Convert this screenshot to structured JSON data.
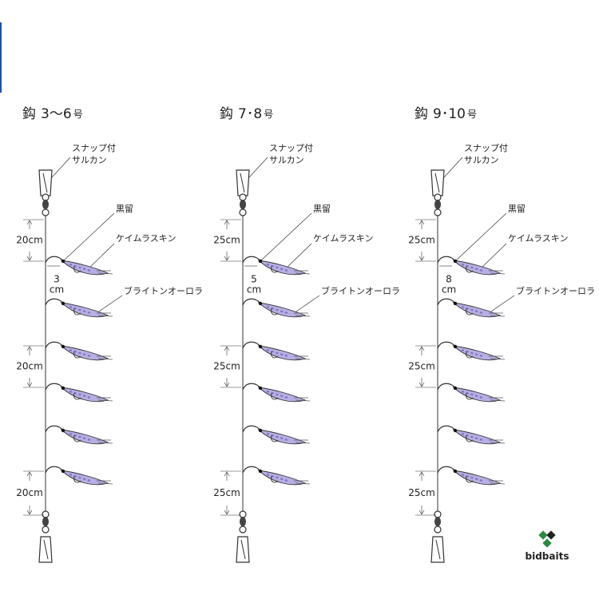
{
  "rigs": [
    {
      "title": {
        "hook": "鈎",
        "size": "3〜6",
        "unit": "号"
      },
      "snap": [
        "スナップ付",
        "サルカン"
      ],
      "knot": "黒留",
      "skin": "ケイムラスキン",
      "aurora": "ブライトンオーロラ",
      "branch": [
        "3",
        "cm"
      ],
      "spacings": [
        "20cm",
        "20cm",
        "20cm"
      ]
    },
    {
      "title": {
        "hook": "鈎",
        "size": "7･8",
        "unit": "号"
      },
      "snap": [
        "スナップ付",
        "サルカン"
      ],
      "knot": "黒留",
      "skin": "ケイムラスキン",
      "aurora": "ブライトンオーロラ",
      "branch": [
        "5",
        "cm"
      ],
      "spacings": [
        "25cm",
        "25cm",
        "25cm"
      ]
    },
    {
      "title": {
        "hook": "鈎",
        "size": "9･10",
        "unit": "号"
      },
      "snap": [
        "スナップ付",
        "サルカン"
      ],
      "knot": "黒留",
      "skin": "ケイムラスキン",
      "aurora": "ブライトンオーロラ",
      "branch": [
        "8",
        "cm"
      ],
      "spacings": [
        "25cm",
        "25cm",
        "25cm"
      ]
    }
  ],
  "logo": "bidbaits"
}
